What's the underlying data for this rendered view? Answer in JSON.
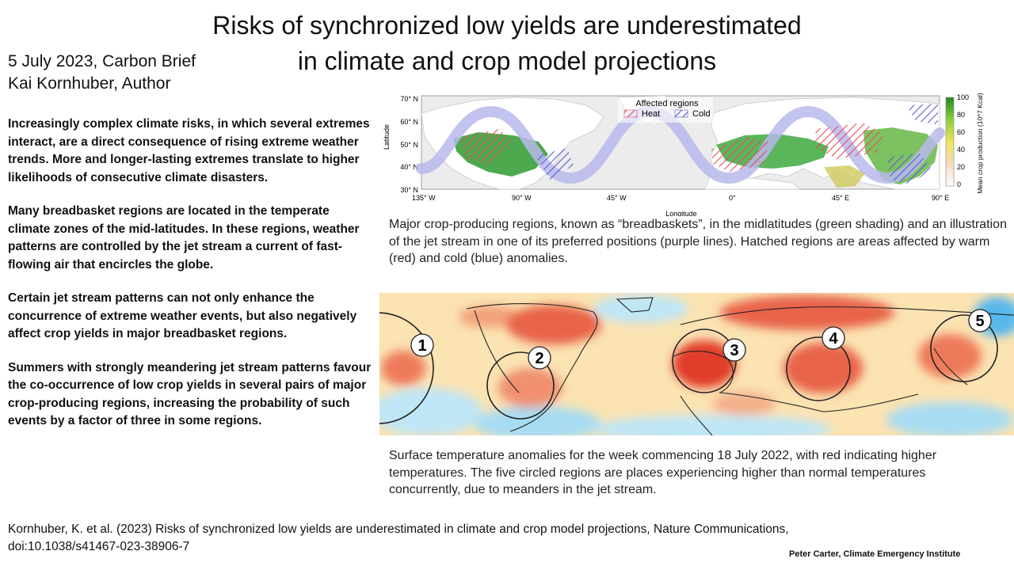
{
  "title_line1": "Risks of synchronized low yields are underestimated",
  "title_line2": "in climate and crop model projections",
  "byline_date": "5 July 2023, Carbon Brief",
  "byline_author": "Kai Kornhuber, Author",
  "paragraphs": [
    "Increasingly complex climate risks, in which several extremes interact, are a direct consequence of rising extreme weather trends. More and longer-lasting extremes translate to higher likelihoods of consecutive climate disasters.",
    "Many breadbasket regions are located in the temperate climate zones of the mid-latitudes. In these regions, weather patterns are controlled by the jet stream a current of fast-flowing air that encircles the globe.",
    "Certain jet stream patterns can not only enhance the concurrence of extreme weather events, but also negatively affect crop yields in major breadbasket regions.",
    "Summers with strongly meandering jet stream patterns favour the co-occurrence of low crop yields in several pairs of major crop-producing regions, increasing the probability of such events by a factor of three in some regions."
  ],
  "figure1": {
    "caption": "Major crop-producing regions, known as “breadbaskets”, in the midlatitudes (green shading) and an illustration of the jet stream in one of its preferred positions (purple lines). Hatched regions are areas affected by warm (red) and cold (blue) anomalies.",
    "ylabel": "Latitude",
    "xlabel": "Longitude",
    "lat_ticks": [
      "70° N",
      "60° N",
      "50° N",
      "40° N",
      "30° N"
    ],
    "lon_ticks": [
      "135° W",
      "90° W",
      "45° W",
      "0°",
      "45° E",
      "90° E"
    ],
    "legend_title": "Affected regions",
    "legend_heat": "Heat",
    "legend_cold": "Cold",
    "colorbar_label": "Mean crop production (10^7 Kcal)",
    "colorbar_ticks": [
      "100",
      "80",
      "60",
      "40",
      "20",
      "0"
    ],
    "colors": {
      "heat": "#e0505a",
      "cold": "#5a5ad8",
      "jet": "#b8b8ec",
      "crop": "#2e9a2e"
    }
  },
  "figure2": {
    "caption": "Surface temperature anomalies for the week commencing 18 July 2022, with red indicating higher temperatures. The five circled regions are places experiencing higher than normal temperatures concurrently, due to meanders in the jet stream.",
    "circle_labels": [
      "1",
      "2",
      "3",
      "4",
      "5"
    ],
    "colors": {
      "warm": "#e03c2c",
      "cool": "#58b8ec",
      "neutral": "#fbe3b2"
    }
  },
  "reference": "Kornhuber, K. et al. (2023) Risks of synchronized low yields are underestimated in climate and crop model projections, Nature Communications, doi:10.1038/s41467-023-38906-7",
  "credit": "Peter Carter, Climate Emergency Institute"
}
